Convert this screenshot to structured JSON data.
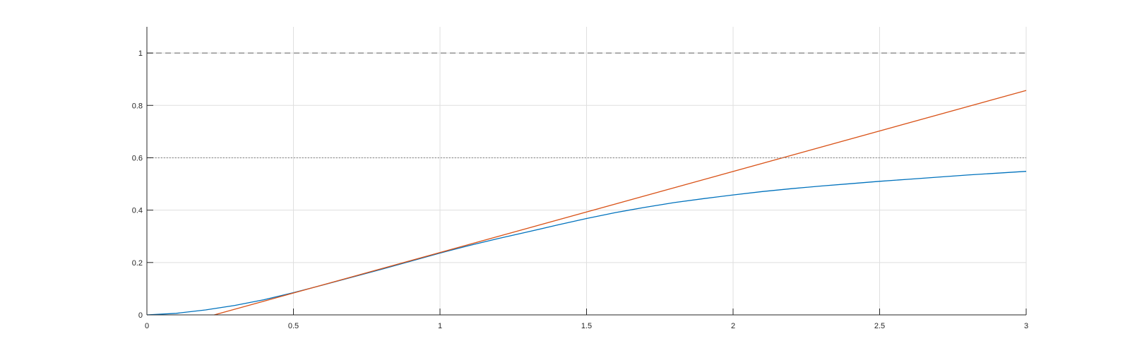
{
  "chart_data": {
    "type": "line",
    "title": "",
    "xlabel": "",
    "ylabel": "",
    "xlim": [
      0,
      3
    ],
    "ylim": [
      0,
      1.1
    ],
    "x_ticks": [
      0,
      0.5,
      1,
      1.5,
      2,
      2.5,
      3
    ],
    "x_tick_labels": [
      "0",
      "0.5",
      "1",
      "1.5",
      "2",
      "2.5",
      "3"
    ],
    "y_ticks": [
      0,
      0.2,
      0.4,
      0.6,
      0.8,
      1
    ],
    "y_tick_labels": [
      "0",
      "0.2",
      "0.4",
      "0.6",
      "0.8",
      "1"
    ],
    "grid": true,
    "series": [
      {
        "color": "#0072bd",
        "style": "solid",
        "x": [
          0,
          0.1,
          0.2,
          0.3,
          0.4,
          0.5,
          0.6,
          0.7,
          0.8,
          0.9,
          1.0,
          1.1,
          1.2,
          1.3,
          1.4,
          1.5,
          1.6,
          1.7,
          1.8,
          1.9,
          2.0,
          2.1,
          2.2,
          2.3,
          2.4,
          2.5,
          2.6,
          2.7,
          2.8,
          2.9,
          3.0
        ],
        "values": [
          0,
          0.006,
          0.019,
          0.036,
          0.058,
          0.085,
          0.114,
          0.144,
          0.174,
          0.205,
          0.236,
          0.265,
          0.292,
          0.317,
          0.343,
          0.368,
          0.391,
          0.411,
          0.429,
          0.444,
          0.458,
          0.471,
          0.482,
          0.492,
          0.501,
          0.51,
          0.518,
          0.526,
          0.534,
          0.541,
          0.548
        ]
      },
      {
        "color": "#d95319",
        "style": "solid",
        "x": [
          0.23,
          3.0
        ],
        "values": [
          0,
          0.857
        ]
      },
      {
        "color": "#7f7f7f",
        "style": "dashed",
        "x": [
          0,
          3
        ],
        "values": [
          1,
          1
        ]
      },
      {
        "color": "#7f7f7f",
        "style": "dotted",
        "x": [
          0,
          3
        ],
        "values": [
          0.6,
          0.6
        ]
      }
    ]
  }
}
